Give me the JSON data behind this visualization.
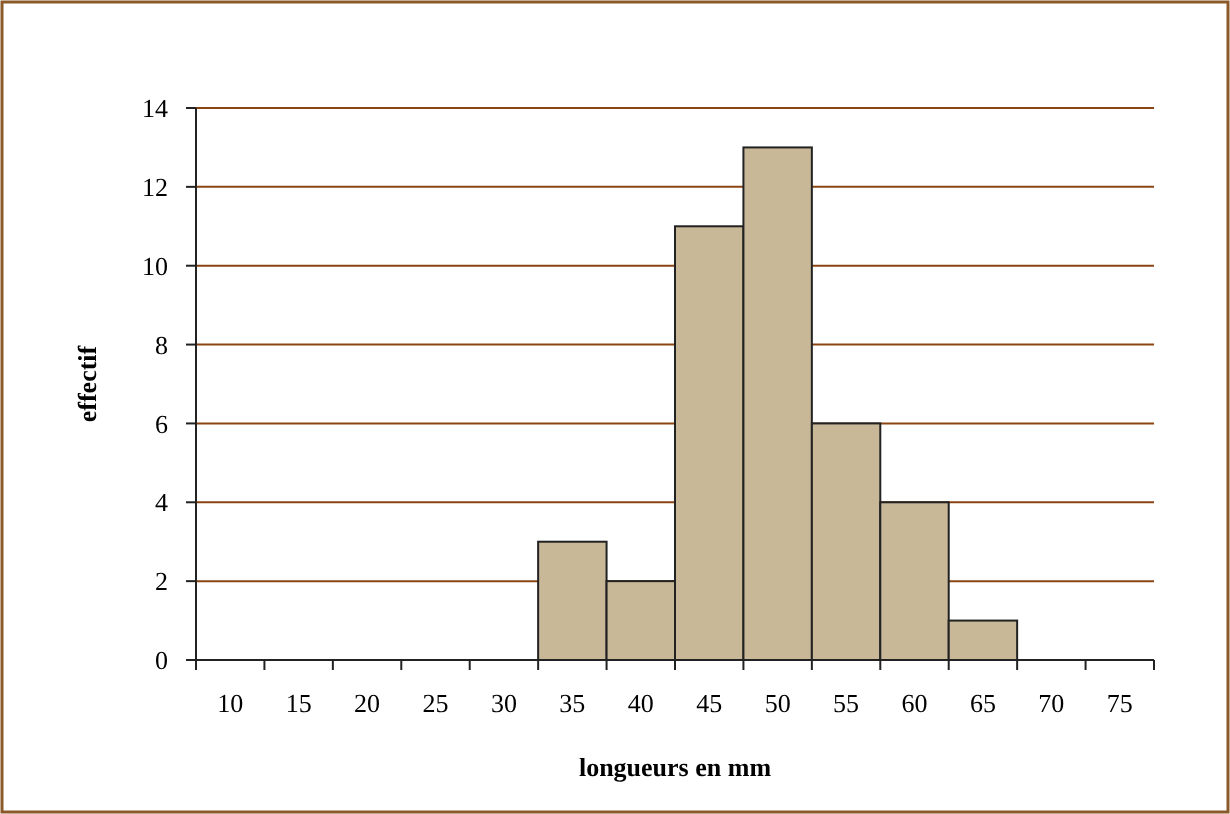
{
  "chart_data": {
    "type": "bar",
    "xlabel": "longueurs en mm",
    "ylabel": "effectif",
    "categories": [
      "10",
      "15",
      "20",
      "25",
      "30",
      "35",
      "40",
      "45",
      "50",
      "55",
      "60",
      "65",
      "70",
      "75"
    ],
    "values": [
      0,
      0,
      0,
      0,
      0,
      3,
      2,
      11,
      13,
      6,
      4,
      1,
      0,
      0
    ],
    "color": "#c8b898",
    "ylim": [
      0,
      14
    ],
    "yticks": [
      0,
      2,
      4,
      6,
      8,
      10,
      12,
      14
    ],
    "grid": "y"
  }
}
